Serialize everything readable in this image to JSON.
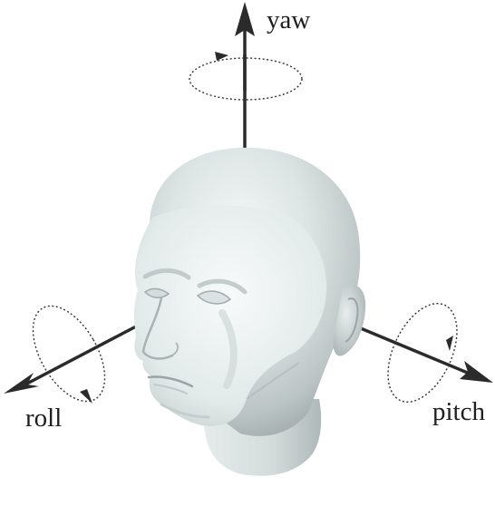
{
  "diagram": {
    "axes": {
      "yaw": {
        "label": "yaw"
      },
      "roll": {
        "label": "roll"
      },
      "pitch": {
        "label": "pitch"
      }
    },
    "colors": {
      "background": "#ffffff",
      "axis": "#2b2b2b",
      "head_light": "#eef3f3",
      "head_mid": "#c9d1d1",
      "head_dark": "#8f9999"
    }
  }
}
